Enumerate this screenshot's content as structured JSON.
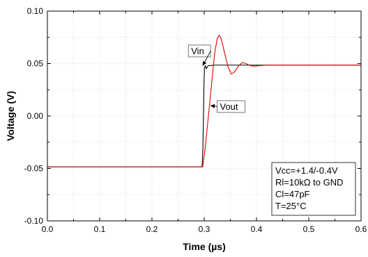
{
  "chart_data": {
    "type": "line",
    "xlabel": "Time (µs)",
    "ylabel": "Voltage (V)",
    "xlim": [
      0.0,
      0.6
    ],
    "ylim": [
      -0.1,
      0.1
    ],
    "x_ticks": [
      "0.0",
      "0.1",
      "0.2",
      "0.3",
      "0.4",
      "0.5",
      "0.6"
    ],
    "y_ticks": [
      "-0.10",
      "-0.05",
      "0.00",
      "0.05",
      "0.10"
    ],
    "grid": true,
    "series": [
      {
        "name": "Vin",
        "color": "#000000",
        "points": [
          [
            0.0,
            -0.0485
          ],
          [
            0.1,
            -0.0485
          ],
          [
            0.2,
            -0.0485
          ],
          [
            0.28,
            -0.0485
          ],
          [
            0.296,
            -0.0485
          ],
          [
            0.2975,
            -0.03
          ],
          [
            0.2985,
            0.0
          ],
          [
            0.2995,
            0.03
          ],
          [
            0.3005,
            0.046
          ],
          [
            0.302,
            0.048
          ],
          [
            0.304,
            0.045
          ],
          [
            0.306,
            0.047
          ],
          [
            0.308,
            0.048
          ],
          [
            0.32,
            0.0485
          ],
          [
            0.35,
            0.0485
          ],
          [
            0.45,
            0.0485
          ],
          [
            0.6,
            0.0485
          ]
        ]
      },
      {
        "name": "Vout",
        "color": "#e00000",
        "points": [
          [
            0.0,
            -0.0485
          ],
          [
            0.1,
            -0.0485
          ],
          [
            0.2,
            -0.0485
          ],
          [
            0.29,
            -0.0485
          ],
          [
            0.297,
            -0.0485
          ],
          [
            0.302,
            -0.03
          ],
          [
            0.308,
            0.0
          ],
          [
            0.314,
            0.03
          ],
          [
            0.32,
            0.06
          ],
          [
            0.325,
            0.074
          ],
          [
            0.329,
            0.077
          ],
          [
            0.333,
            0.073
          ],
          [
            0.339,
            0.06
          ],
          [
            0.346,
            0.046
          ],
          [
            0.352,
            0.04
          ],
          [
            0.358,
            0.042
          ],
          [
            0.366,
            0.048
          ],
          [
            0.373,
            0.051
          ],
          [
            0.38,
            0.05
          ],
          [
            0.388,
            0.048
          ],
          [
            0.396,
            0.0475
          ],
          [
            0.405,
            0.048
          ],
          [
            0.42,
            0.0485
          ],
          [
            0.6,
            0.0485
          ]
        ]
      }
    ],
    "annotations": [
      {
        "label": "Vin",
        "x": 0.275,
        "y": 0.059,
        "arrow_to": [
          0.297,
          0.048
        ]
      },
      {
        "label": "Vout",
        "x": 0.33,
        "y": 0.006,
        "arrow_to": [
          0.312,
          0.01
        ]
      }
    ],
    "conditions_box": {
      "position": "bottom-right",
      "lines": [
        "Vcc=+1.4/-0.4V",
        "Rl=10kΩ to GND",
        "Cl=47pF",
        "T=25°C"
      ]
    }
  }
}
